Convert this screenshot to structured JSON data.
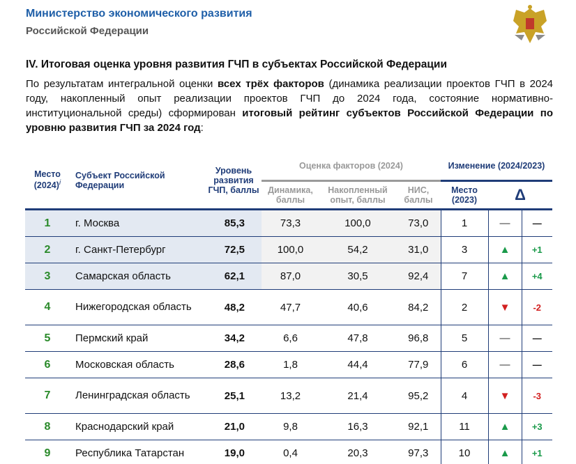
{
  "header": {
    "org_line1": "Министерство экономического развития",
    "org_line2": "Российской Федерации"
  },
  "section_title": "IV. Итоговая оценка уровня развития ГЧП в субъектах Российской Федерации",
  "paragraph": [
    {
      "t": "По результатам интегральной оценки ",
      "b": false
    },
    {
      "t": "всех трёх факторов",
      "b": true
    },
    {
      "t": " (динамика реализации проектов ГЧП в 2024 году, накопленный опыт реализации проектов ГЧП до 2024 года, состояние нормативно-институциональной среды) сформирован ",
      "b": false
    },
    {
      "t": "итоговый рейтинг субъектов Российской Федерации по уровню развития ГЧП за 2024 год",
      "b": true
    },
    {
      "t": ":",
      "b": false
    }
  ],
  "table": {
    "headers": {
      "place": "Место (2024)",
      "place_note": "i",
      "subject": "Субъект Российской Федерации",
      "level": "Уровень развития ГЧП, баллы",
      "factors": "Оценка факторов (2024)",
      "dynamics": "Динамика, баллы",
      "experience": "Накопленный опыт, баллы",
      "nis": "НИС, баллы",
      "change": "Изменение (2024/2023)",
      "place2023": "Место (2023)",
      "delta": "Δ"
    },
    "rows": [
      {
        "rank": "1",
        "subject": "г. Москва",
        "level": "85,3",
        "dyn": "73,3",
        "exp": "100,0",
        "nis": "73,0",
        "p23": "1",
        "trend": "same",
        "arrow": "—",
        "delta": "—"
      },
      {
        "rank": "2",
        "subject": "г. Санкт-Петербург",
        "level": "72,5",
        "dyn": "100,0",
        "exp": "54,2",
        "nis": "31,0",
        "p23": "3",
        "trend": "up",
        "arrow": "▲",
        "delta": "+1"
      },
      {
        "rank": "3",
        "subject": "Самарская область",
        "level": "62,1",
        "dyn": "87,0",
        "exp": "30,5",
        "nis": "92,4",
        "p23": "7",
        "trend": "up",
        "arrow": "▲",
        "delta": "+4"
      },
      {
        "rank": "4",
        "subject": "Нижегородская область",
        "level": "48,2",
        "dyn": "47,7",
        "exp": "40,6",
        "nis": "84,2",
        "p23": "2",
        "trend": "down",
        "arrow": "▼",
        "delta": "-2"
      },
      {
        "rank": "5",
        "subject": "Пермский край",
        "level": "34,2",
        "dyn": "6,6",
        "exp": "47,8",
        "nis": "96,8",
        "p23": "5",
        "trend": "same",
        "arrow": "—",
        "delta": "—"
      },
      {
        "rank": "6",
        "subject": "Московская область",
        "level": "28,6",
        "dyn": "1,8",
        "exp": "44,4",
        "nis": "77,9",
        "p23": "6",
        "trend": "same",
        "arrow": "—",
        "delta": "—"
      },
      {
        "rank": "7",
        "subject": "Ленинградская область",
        "level": "25,1",
        "dyn": "13,2",
        "exp": "21,4",
        "nis": "95,2",
        "p23": "4",
        "trend": "down",
        "arrow": "▼",
        "delta": "-3"
      },
      {
        "rank": "8",
        "subject": "Краснодарский край",
        "level": "21,0",
        "dyn": "9,8",
        "exp": "16,3",
        "nis": "92,1",
        "p23": "11",
        "trend": "up",
        "arrow": "▲",
        "delta": "+3"
      },
      {
        "rank": "9",
        "subject": "Республика Татарстан",
        "level": "19,0",
        "dyn": "0,4",
        "exp": "20,3",
        "nis": "97,3",
        "p23": "10",
        "trend": "up",
        "arrow": "▲",
        "delta": "+1"
      }
    ]
  }
}
